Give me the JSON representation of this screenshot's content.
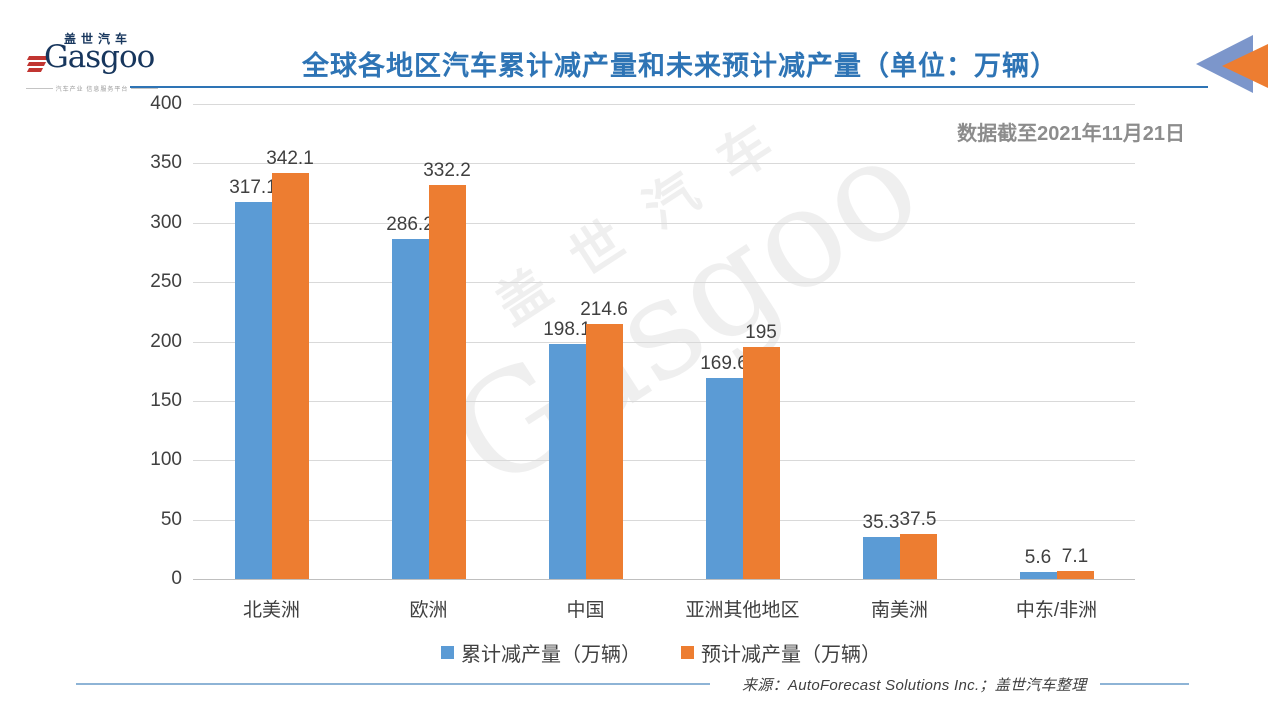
{
  "logo": {
    "brand_cn": "盖世汽车",
    "brand_en": "Gasgoo",
    "tagline": "汽车产业 信息服务平台"
  },
  "header": {
    "title": "全球各地区汽车累计减产量和未来预计减产量（单位：万辆）",
    "date_note": "数据截至2021年11月21日"
  },
  "chart_data": {
    "type": "bar",
    "title": "全球各地区汽车累计减产量和未来预计减产量（单位：万辆）",
    "categories": [
      "北美洲",
      "欧洲",
      "中国",
      "亚洲其他地区",
      "南美洲",
      "中东/非洲"
    ],
    "series": [
      {
        "name": "累计减产量（万辆）",
        "color": "#5B9BD5",
        "values": [
          317.1,
          286.2,
          198.1,
          169.6,
          35.3,
          5.6
        ]
      },
      {
        "name": "预计减产量（万辆）",
        "color": "#ED7D31",
        "values": [
          342.1,
          332.2,
          214.6,
          195,
          37.5,
          7.1
        ]
      }
    ],
    "xlabel": "",
    "ylabel": "",
    "ylim": [
      0,
      400
    ],
    "yticks": [
      400,
      350,
      300,
      250,
      200,
      150,
      100,
      50,
      0
    ],
    "grid": true,
    "legend_position": "bottom"
  },
  "watermark": {
    "text_cn": "盖世汽车",
    "text_en": "Gasgoo"
  },
  "footer": {
    "source": "来源：AutoForecast Solutions Inc.；盖世汽车整理"
  },
  "colors": {
    "title_blue": "#2E74B5",
    "bar_blue": "#5B9BD5",
    "bar_orange": "#ED7D31",
    "gridline": "#D9D9D9",
    "source_rule_blue": "#8EB4D6",
    "corner_triangle_blue": "#7C96CB",
    "date_gray": "#8C8C8C"
  }
}
